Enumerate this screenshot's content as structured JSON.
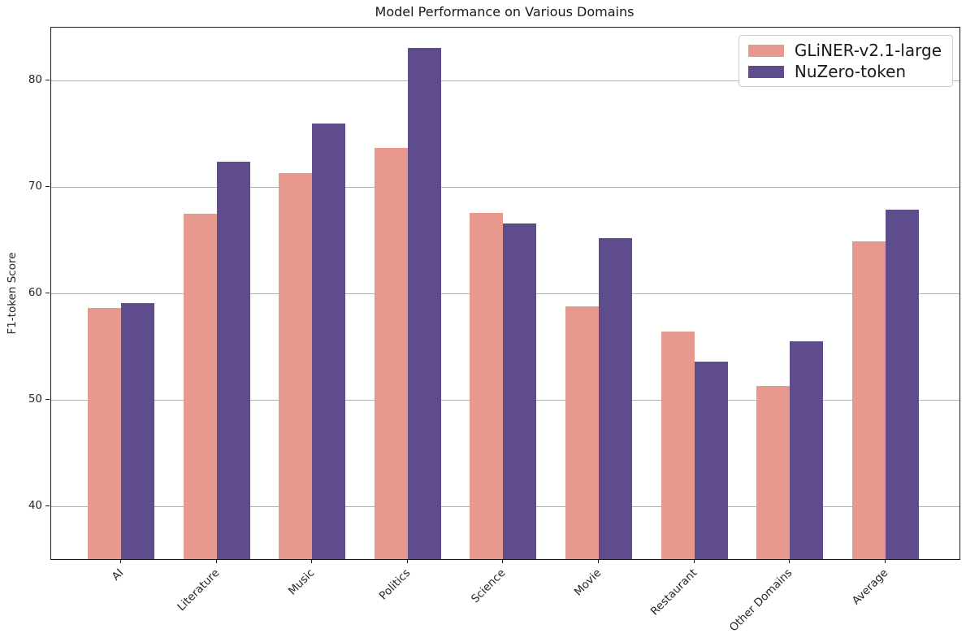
{
  "chart_data": {
    "type": "bar",
    "title": "Model Performance on Various Domains",
    "xlabel": "",
    "ylabel": "F1-token Score",
    "categories": [
      "AI",
      "Literature",
      "Music",
      "Politics",
      "Science",
      "Movie",
      "Restaurant",
      "Other Domains",
      "Average"
    ],
    "series": [
      {
        "name": "GLiNER-v2.1-large",
        "color": "#E7998D",
        "values": [
          58.6,
          67.5,
          71.3,
          73.7,
          67.6,
          58.8,
          56.4,
          51.3,
          64.9
        ]
      },
      {
        "name": "NuZero-token",
        "color": "#5E4C8C",
        "values": [
          59.1,
          72.4,
          76.0,
          83.1,
          66.6,
          65.2,
          53.6,
          55.5,
          67.9
        ]
      }
    ],
    "ylim": [
      35,
      85
    ],
    "yticks": [
      40,
      50,
      60,
      70,
      80
    ],
    "grid": true,
    "grid_color": "#b0b0b0",
    "legend_position": "upper right",
    "background_color": "#ffffff"
  }
}
